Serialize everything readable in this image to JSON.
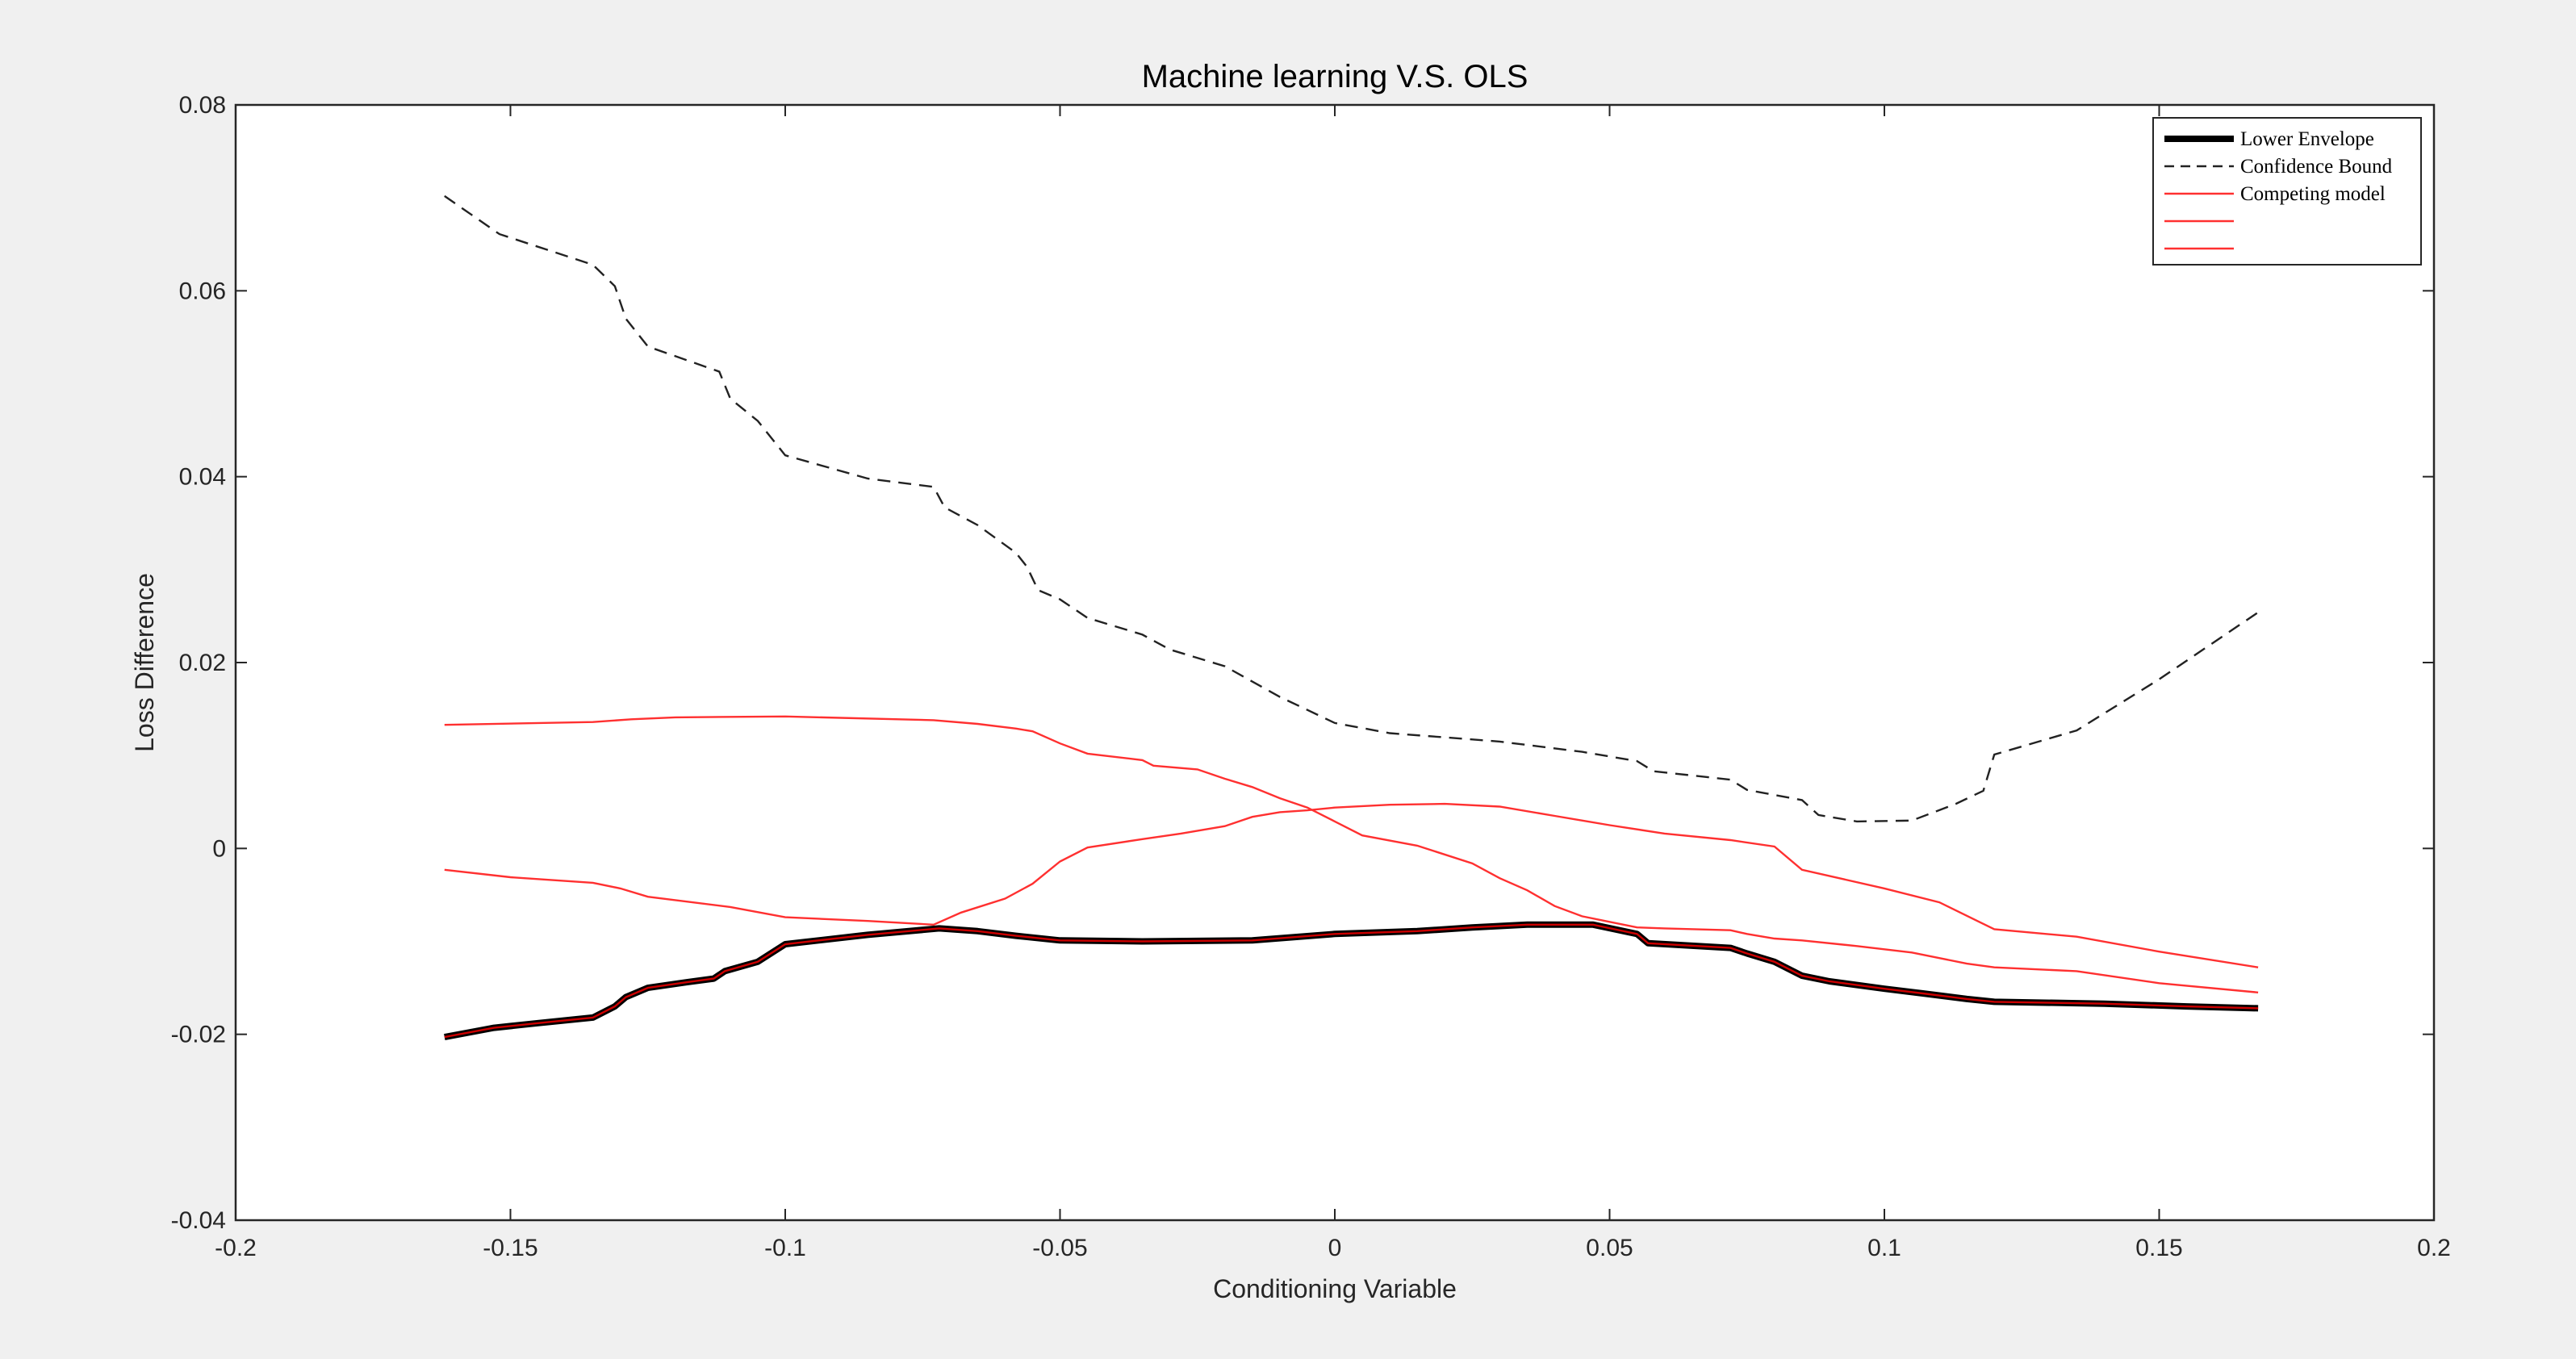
{
  "colors": {
    "figure_bg": "#f0f0f0",
    "axes_bg": "#ffffff",
    "envelope": "#000000",
    "envelope_core": "#cc0000",
    "confidence": "#222222",
    "competing": "#ff3030"
  },
  "chart_data": {
    "type": "line",
    "title": "Machine learning V.S. OLS",
    "xlabel": "Conditioning Variable",
    "ylabel": "Loss Difference",
    "xlim": [
      -0.2,
      0.2
    ],
    "ylim": [
      -0.04,
      0.08
    ],
    "x_ticks": [
      -0.2,
      -0.15,
      -0.1,
      -0.05,
      0,
      0.05,
      0.1,
      0.15,
      0.2
    ],
    "x_tick_labels": [
      "-0.2",
      "-0.15",
      "-0.1",
      "-0.05",
      "0",
      "0.05",
      "0.1",
      "0.15",
      "0.2"
    ],
    "y_ticks": [
      -0.04,
      -0.02,
      0,
      0.02,
      0.04,
      0.06,
      0.08
    ],
    "y_tick_labels": [
      "-0.04",
      "-0.02",
      "0",
      "0.02",
      "0.04",
      "0.06",
      "0.08"
    ],
    "grid": false,
    "legend_position": "top-right",
    "legend": [
      {
        "label": "Lower Envelope",
        "style": "thick-black"
      },
      {
        "label": "Confidence Bound",
        "style": "dashed-black"
      },
      {
        "label": "Competing model",
        "style": "red"
      },
      {
        "label": "",
        "style": "red"
      },
      {
        "label": "",
        "style": "red"
      }
    ],
    "series": [
      {
        "name": "Lower Envelope",
        "style": "thick-black",
        "x": [
          -0.162,
          -0.153,
          -0.145,
          -0.135,
          -0.131,
          -0.129,
          -0.125,
          -0.118,
          -0.113,
          -0.111,
          -0.105,
          -0.1,
          -0.085,
          -0.072,
          -0.065,
          -0.058,
          -0.05,
          -0.035,
          -0.015,
          0,
          0.015,
          0.025,
          0.035,
          0.047,
          0.055,
          0.057,
          0.072,
          0.075,
          0.08,
          0.085,
          0.09,
          0.1,
          0.107,
          0.115,
          0.12,
          0.14,
          0.155,
          0.168
        ],
        "y": [
          -0.0203,
          -0.0193,
          -0.0188,
          -0.0182,
          -0.017,
          -0.016,
          -0.015,
          -0.0144,
          -0.014,
          -0.0132,
          -0.0122,
          -0.0103,
          -0.0093,
          -0.0086,
          -0.0089,
          -0.0094,
          -0.0099,
          -0.01,
          -0.0099,
          -0.0092,
          -0.0089,
          -0.0085,
          -0.0082,
          -0.0082,
          -0.0092,
          -0.0102,
          -0.0107,
          -0.0113,
          -0.0122,
          -0.0137,
          -0.0143,
          -0.0151,
          -0.0156,
          -0.0162,
          -0.0165,
          -0.0167,
          -0.017,
          -0.0172
        ]
      },
      {
        "name": "Confidence Bound",
        "style": "dashed-black",
        "x": [
          -0.162,
          -0.152,
          -0.135,
          -0.131,
          -0.129,
          -0.125,
          -0.112,
          -0.11,
          -0.105,
          -0.1,
          -0.085,
          -0.073,
          -0.071,
          -0.065,
          -0.058,
          -0.056,
          -0.054,
          -0.05,
          -0.045,
          -0.035,
          -0.03,
          -0.02,
          -0.01,
          -0.005,
          0,
          0.01,
          0.03,
          0.045,
          0.055,
          0.058,
          0.072,
          0.075,
          0.085,
          0.088,
          0.095,
          0.105,
          0.113,
          0.118,
          0.12,
          0.135,
          0.15,
          0.168
        ],
        "y": [
          0.0702,
          0.0661,
          0.0628,
          0.0605,
          0.057,
          0.054,
          0.0513,
          0.0484,
          0.046,
          0.0423,
          0.0398,
          0.0389,
          0.0367,
          0.0348,
          0.0318,
          0.0303,
          0.0278,
          0.0268,
          0.0248,
          0.023,
          0.0214,
          0.0196,
          0.0163,
          0.0149,
          0.0135,
          0.0124,
          0.0115,
          0.0104,
          0.0094,
          0.0083,
          0.0074,
          0.0063,
          0.0052,
          0.0036,
          0.0029,
          0.003,
          0.0048,
          0.0062,
          0.0101,
          0.0127,
          0.0182,
          0.0254
        ]
      },
      {
        "name": "Competing model",
        "style": "red",
        "x": [
          -0.162,
          -0.135,
          -0.128,
          -0.12,
          -0.1,
          -0.073,
          -0.065,
          -0.058,
          -0.055,
          -0.05,
          -0.045,
          -0.035,
          -0.033,
          -0.025,
          -0.02,
          -0.015,
          -0.01,
          -0.005,
          0,
          0.005,
          0.015,
          0.025,
          0.03,
          0.035,
          0.04,
          0.045,
          0.055,
          0.06,
          0.072,
          0.075,
          0.08,
          0.085,
          0.095,
          0.105,
          0.11,
          0.115,
          0.12,
          0.135,
          0.15,
          0.168
        ],
        "y": [
          0.0133,
          0.0136,
          0.0139,
          0.0141,
          0.0142,
          0.0138,
          0.0134,
          0.0129,
          0.0126,
          0.0113,
          0.0102,
          0.0095,
          0.0089,
          0.0085,
          0.0075,
          0.0066,
          0.0054,
          0.0044,
          0.0029,
          0.0014,
          0.0003,
          -0.0016,
          -0.0032,
          -0.0045,
          -0.0062,
          -0.0073,
          -0.0085,
          -0.0086,
          -0.0088,
          -0.0092,
          -0.0097,
          -0.0099,
          -0.0105,
          -0.0112,
          -0.0118,
          -0.0124,
          -0.0128,
          -0.0132,
          -0.0145,
          -0.0155
        ]
      },
      {
        "name": "",
        "style": "red",
        "x": [
          -0.162,
          -0.15,
          -0.135,
          -0.13,
          -0.125,
          -0.11,
          -0.1,
          -0.085,
          -0.073,
          -0.068,
          -0.06,
          -0.055,
          -0.05,
          -0.045,
          -0.035,
          -0.028,
          -0.02,
          -0.015,
          -0.01,
          -0.005,
          0,
          0.01,
          0.02,
          0.03,
          0.04,
          0.05,
          0.06,
          0.072,
          0.08,
          0.085,
          0.1,
          0.11,
          0.12,
          0.135,
          0.15,
          0.168
        ],
        "y": [
          -0.0023,
          -0.0031,
          -0.0037,
          -0.0043,
          -0.0052,
          -0.0063,
          -0.0074,
          -0.0078,
          -0.0082,
          -0.0069,
          -0.0054,
          -0.0038,
          -0.0014,
          0.0001,
          0.001,
          0.0016,
          0.0024,
          0.0034,
          0.0039,
          0.0041,
          0.0044,
          0.0047,
          0.0048,
          0.0045,
          0.0035,
          0.0025,
          0.0016,
          0.0009,
          0.0002,
          -0.0023,
          -0.0043,
          -0.0058,
          -0.0087,
          -0.0095,
          -0.0111,
          -0.0128
        ]
      }
    ]
  }
}
